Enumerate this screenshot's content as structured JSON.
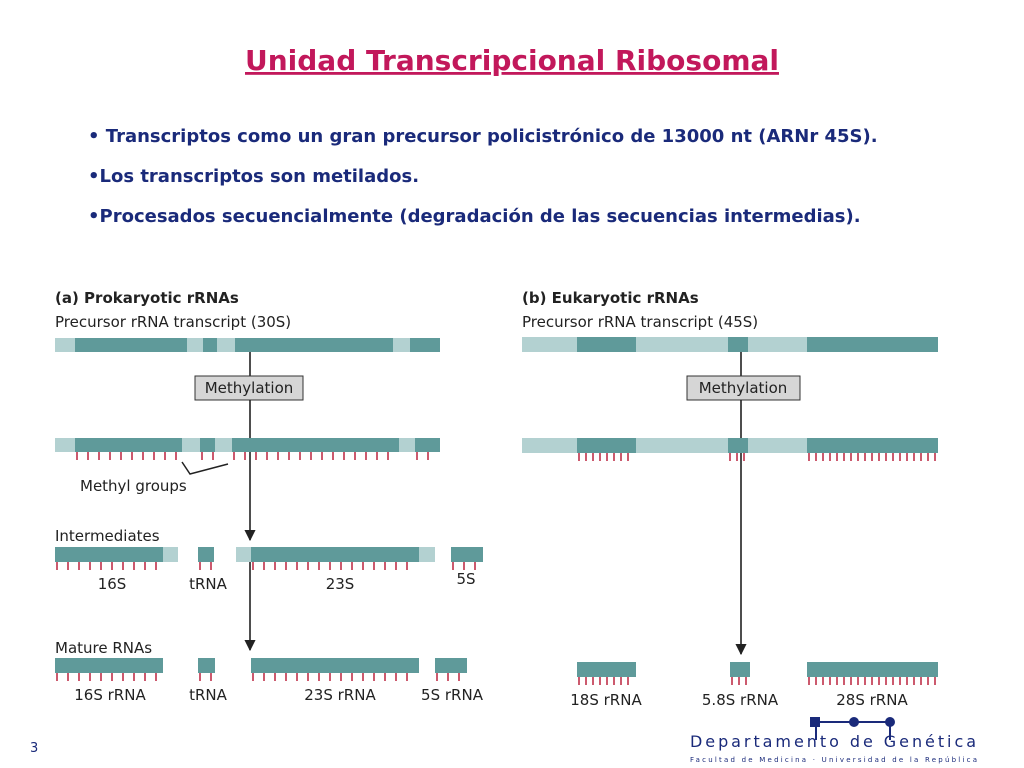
{
  "slide": {
    "title": "Unidad Transcripcional Ribosomal",
    "bullets": [
      "• Transcriptos como un gran precursor policistrónico de 13000 nt (ARNr 45S).",
      "•Los transcriptos son metilados.",
      "•Procesados secuencialmente (degradación de las secuencias intermedias)."
    ],
    "page_number": "3",
    "footer": {
      "department": "Departamento de Genética",
      "institution": "Facultad de Medicina · Universidad de la República"
    }
  },
  "panel_a": {
    "heading": "(a)  Prokaryotic rRNAs",
    "precursor": "Precursor rRNA transcript (30S)",
    "step": "Methylation",
    "methyl_label": "Methyl groups",
    "intermediates": {
      "heading": "Intermediates",
      "labels": [
        "16S",
        "tRNA",
        "23S",
        "5S"
      ]
    },
    "mature": {
      "heading": "Mature RNAs",
      "labels": [
        "16S rRNA",
        "tRNA",
        "23S rRNA",
        "5S rRNA"
      ]
    }
  },
  "panel_b": {
    "heading": "(b)  Eukaryotic rRNAs",
    "precursor": "Precursor rRNA transcript (45S)",
    "step": "Methylation",
    "mature": {
      "labels": [
        "18S rRNA",
        "5.8S rRNA",
        "28S rRNA"
      ]
    }
  }
}
